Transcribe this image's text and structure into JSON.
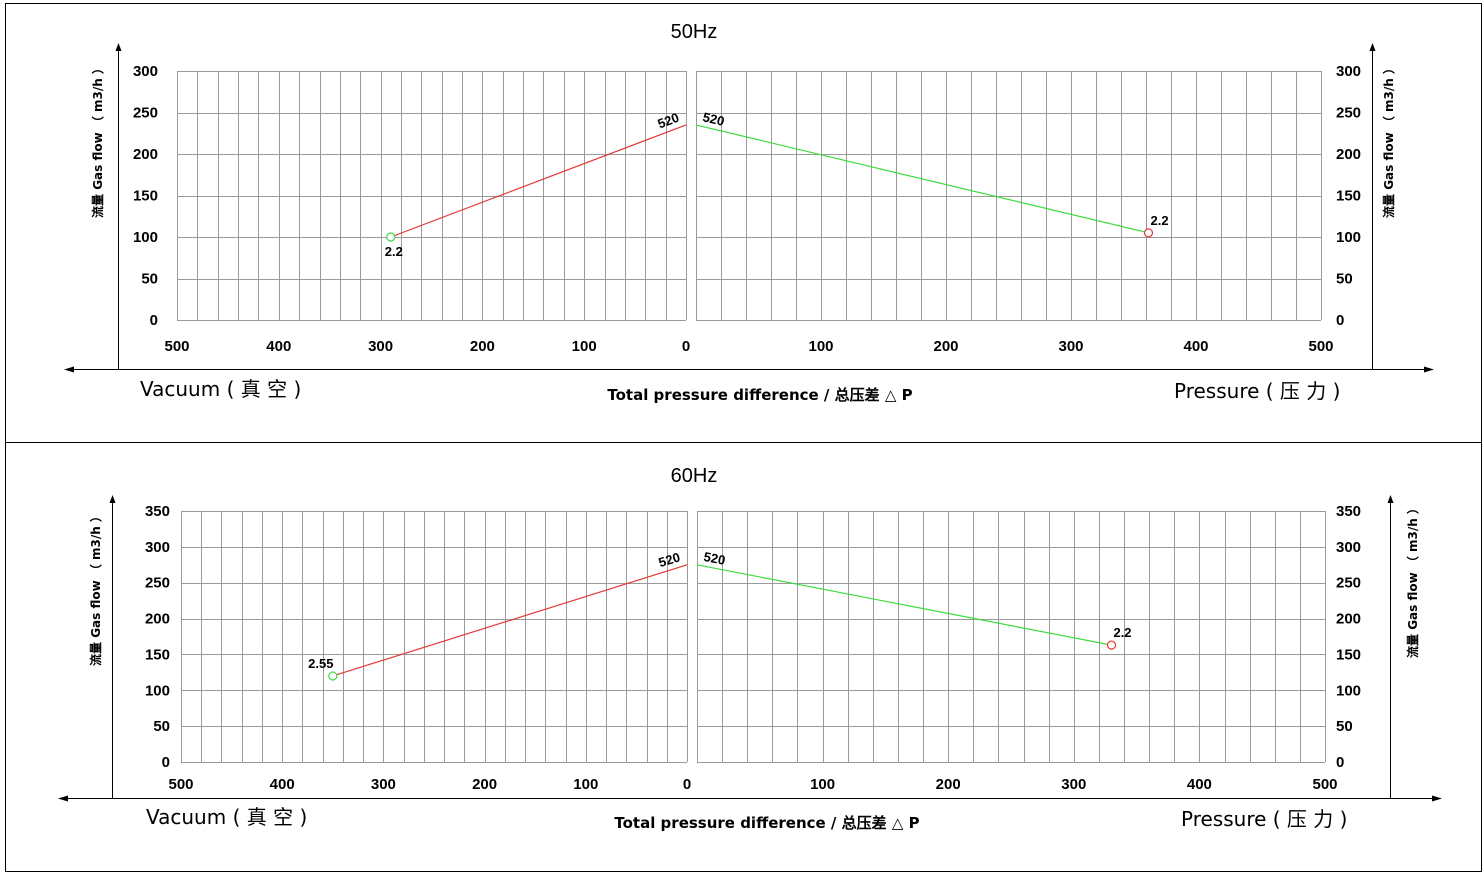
{
  "chart_data": [
    {
      "type": "line",
      "title": "50Hz",
      "xlabel": "Total pressure difference / 总压差 △ P",
      "ylabel_left": "流量 Gas flow （ m3/h ）",
      "ylabel_right": "流量 Gas flow （ m3/h ）",
      "vacuum_label": "Vacuum ( 真 空 )",
      "pressure_label": "Pressure ( 压 力 )",
      "x_ticks_vacuum": [
        "500",
        "400",
        "300",
        "200",
        "100",
        "0"
      ],
      "x_ticks_pressure": [
        "100",
        "200",
        "300",
        "400",
        "500"
      ],
      "y_ticks_left": [
        "0",
        "50",
        "100",
        "150",
        "200",
        "250",
        "300"
      ],
      "y_ticks_right": [
        "0",
        "50",
        "100",
        "150",
        "200",
        "250",
        "300"
      ],
      "ylim": [
        0,
        300
      ],
      "xlim": [
        0,
        500
      ],
      "grid": true,
      "series": [
        {
          "side": "vacuum",
          "color": "#e53935",
          "marker_color": "#3ddc3d",
          "x": [
            290,
            0
          ],
          "y": [
            100,
            235
          ],
          "labels": [
            "2.2",
            "520"
          ]
        },
        {
          "side": "pressure",
          "color": "#3ddc3d",
          "marker_color": "#e53935",
          "x": [
            0,
            362
          ],
          "y": [
            235,
            105
          ],
          "labels": [
            "520",
            "2.2"
          ]
        }
      ]
    },
    {
      "type": "line",
      "title": "60Hz",
      "xlabel": "Total pressure difference / 总压差 △ P",
      "ylabel_left": "流量 Gas flow （ m3/h ）",
      "ylabel_right": "流量 Gas flow （ m3/h ）",
      "vacuum_label": "Vacuum ( 真 空 )",
      "pressure_label": "Pressure ( 压 力 )",
      "x_ticks_vacuum": [
        "500",
        "400",
        "300",
        "200",
        "100",
        "0"
      ],
      "x_ticks_pressure": [
        "100",
        "200",
        "300",
        "400",
        "500"
      ],
      "y_ticks_left": [
        "0",
        "50",
        "100",
        "150",
        "200",
        "250",
        "300",
        "350"
      ],
      "y_ticks_right": [
        "0",
        "50",
        "100",
        "150",
        "200",
        "250",
        "300",
        "350"
      ],
      "ylim": [
        0,
        350
      ],
      "xlim": [
        0,
        500
      ],
      "grid": true,
      "series": [
        {
          "side": "vacuum",
          "color": "#e53935",
          "marker_color": "#3ddc3d",
          "x": [
            350,
            0
          ],
          "y": [
            120,
            275
          ],
          "labels": [
            "2.55",
            "520"
          ]
        },
        {
          "side": "pressure",
          "color": "#3ddc3d",
          "marker_color": "#e53935",
          "x": [
            0,
            330
          ],
          "y": [
            275,
            163
          ],
          "labels": [
            "520",
            "2.2"
          ]
        }
      ]
    }
  ]
}
